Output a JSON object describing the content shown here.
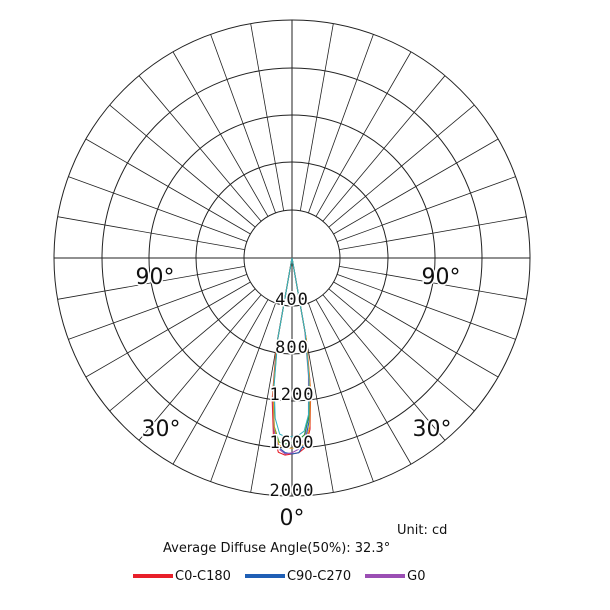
{
  "chart_data": {
    "type": "polar",
    "radial_ticks": [
      "400",
      "800",
      "1200",
      "1600",
      "2000"
    ],
    "radial_max": 2000,
    "angle_labels": {
      "bottom": "0°",
      "left_mid": "90°",
      "right_mid": "90°",
      "left_low": "30°",
      "right_low": "30°"
    },
    "series": [
      {
        "name": "C0-C180",
        "color": "#e8202a",
        "angles": [
          -10,
          -8,
          -6,
          -4,
          -2,
          0,
          2,
          4,
          6,
          8,
          10
        ],
        "values": [
          760,
          1200,
          1500,
          1640,
          1660,
          1650,
          1640,
          1600,
          1450,
          1130,
          700
        ]
      },
      {
        "name": "C90-C270",
        "color": "#1f5fb5",
        "angles": [
          -10,
          -8,
          -6,
          -4,
          -2,
          0,
          2,
          4,
          6,
          8,
          10
        ],
        "values": [
          700,
          1120,
          1440,
          1600,
          1640,
          1650,
          1640,
          1560,
          1380,
          1050,
          650
        ]
      },
      {
        "name": "G0",
        "color": "#9b4fb4",
        "angles": [
          -10,
          -8,
          -6,
          -4,
          -2,
          0,
          2,
          4,
          6,
          8,
          10
        ],
        "values": [
          720,
          1150,
          1460,
          1610,
          1650,
          1640,
          1610,
          1520,
          1330,
          1000,
          620
        ]
      }
    ],
    "extra_curve_colors": [
      "#2a9a3a",
      "#e0a020",
      "#30b0c0"
    ]
  },
  "unit_text": "Unit: cd",
  "diffuse_text": "Average Diffuse Angle(50%): 32.3°",
  "legend": [
    {
      "label": "C0-C180",
      "color": "#e8202a"
    },
    {
      "label": "C90-C270",
      "color": "#1f5fb5"
    },
    {
      "label": "G0",
      "color": "#9b4fb4"
    }
  ]
}
